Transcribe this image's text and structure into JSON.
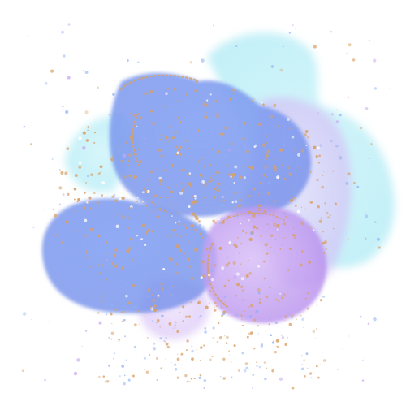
{
  "artwork": {
    "background": "#ffffff",
    "palette": {
      "cyan": "#a8ecf5",
      "blue": "#7f9ef2",
      "deep_blue": "#6f8ae8",
      "violet": "#c9a6f2",
      "lilac": "#d9c6f6",
      "gold": "#d9a066",
      "speck_blue": "#8fb0f5"
    }
  }
}
